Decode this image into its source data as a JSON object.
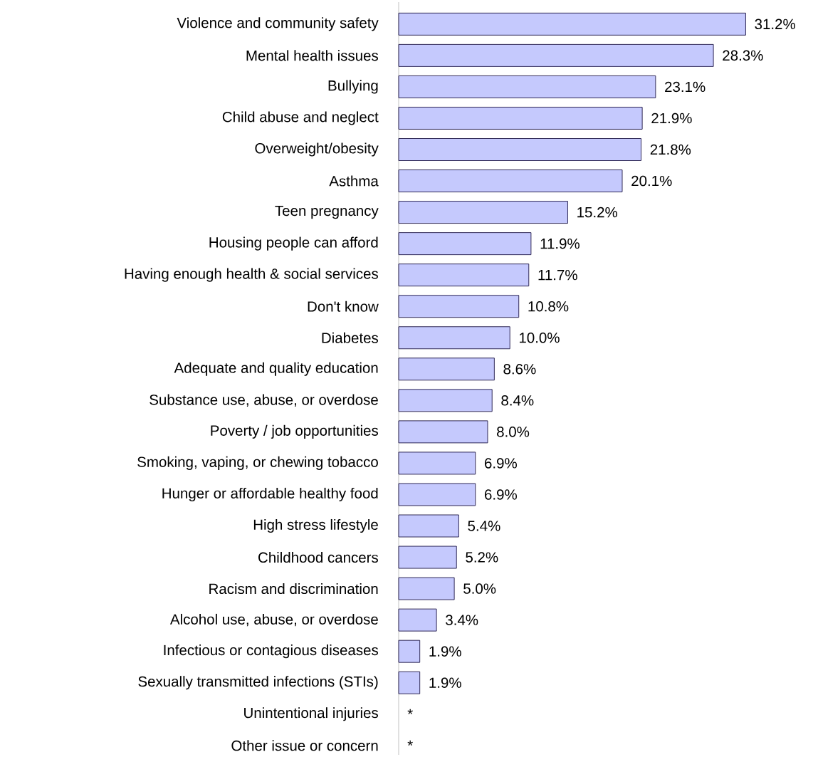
{
  "chart_data": {
    "type": "bar",
    "orientation": "horizontal",
    "color": "#c5c9fd",
    "categories": [
      "Violence and community safety",
      "Mental health issues",
      "Bullying",
      "Child abuse and neglect",
      "Overweight/obesity",
      "Asthma",
      "Teen pregnancy",
      "Housing people can afford",
      "Having enough health & social services",
      "Don't know",
      "Diabetes",
      "Adequate and quality education",
      "Substance use, abuse, or overdose",
      "Poverty / job opportunities",
      "Smoking, vaping, or chewing tobacco",
      "Hunger or affordable healthy food",
      "High stress lifestyle",
      "Childhood cancers",
      "Racism and discrimination",
      "Alcohol use, abuse, or overdose",
      "Infectious or contagious diseases",
      "Sexually transmitted infections (STIs)",
      "Unintentional injuries",
      "Other issue or concern"
    ],
    "values": [
      31.2,
      28.3,
      23.1,
      21.9,
      21.8,
      20.1,
      15.2,
      11.9,
      11.7,
      10.8,
      10.0,
      8.6,
      8.4,
      8.0,
      6.9,
      6.9,
      5.4,
      5.2,
      5.0,
      3.4,
      1.9,
      1.9,
      null,
      null
    ],
    "value_labels": [
      "31.2%",
      "28.3%",
      "23.1%",
      "21.9%",
      "21.8%",
      "20.1%",
      "15.2%",
      "11.9%",
      "11.7%",
      "10.8%",
      "10.0%",
      "8.6%",
      "8.4%",
      "8.0%",
      "6.9%",
      "6.9%",
      "5.4%",
      "5.2%",
      "5.0%",
      "3.4%",
      "1.9%",
      "1.9%",
      "*",
      "*"
    ]
  }
}
